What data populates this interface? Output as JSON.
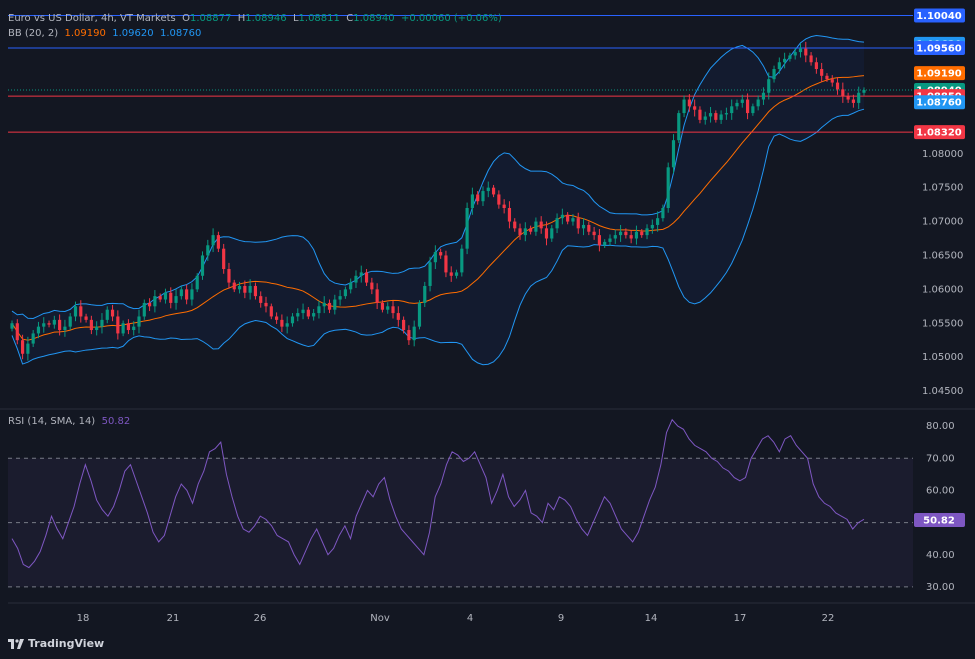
{
  "header": {
    "symbol": "Euro vs US Dollar, 4h, VT Markets",
    "o_label": "O",
    "open": "1.08877",
    "h_label": "H",
    "high": "1.08946",
    "l_label": "L",
    "low": "1.08811",
    "c_label": "C",
    "close": "1.08940",
    "change": "+0.00060 (+0.06%)",
    "bb_label": "BB (20, 2)",
    "bb_basis": "1.09190",
    "bb_upper": "1.09620",
    "bb_lower": "1.08760"
  },
  "rsi_header": {
    "label": "RSI (14, SMA, 14)",
    "value": "50.82"
  },
  "logo": "TradingView",
  "colors": {
    "background": "#131722",
    "up": "#089981",
    "down": "#f23645",
    "bb_band": "#2962ff",
    "bb_basis": "#ff6d00",
    "rsi": "#7e57c2",
    "hline_blue": "#2962ff",
    "hline_red": "#f23645"
  },
  "chart_data": [
    {
      "type": "candlestick",
      "title": "Euro vs US Dollar, 4h, VT Markets",
      "ylim": [
        1.0425,
        1.1015
      ],
      "y_ticks": [
        "1.04500",
        "1.05000",
        "1.05500",
        "1.06000",
        "1.06500",
        "1.07000",
        "1.07500",
        "1.08000"
      ],
      "x_ticks": [
        "18",
        "21",
        "26",
        "Nov",
        "4",
        "9",
        "14",
        "17",
        "22"
      ],
      "horizontal_lines": [
        {
          "value": 1.1004,
          "color": "#2962ff",
          "label": "1.10040"
        },
        {
          "value": 1.0956,
          "color": "#2962ff",
          "label": "1.09560"
        },
        {
          "value": 1.0885,
          "color": "#f23645",
          "label": "1.08850"
        },
        {
          "value": 1.0832,
          "color": "#f23645",
          "label": "1.08320"
        }
      ],
      "price_tags": [
        {
          "label": "1.10040",
          "value": 1.1004,
          "bg": "#2962ff",
          "fg": "#ffffff"
        },
        {
          "label": "1.09620",
          "value": 1.0962,
          "bg": "#2196f3",
          "fg": "#ffffff"
        },
        {
          "label": "1.09560",
          "value": 1.0956,
          "bg": "#2962ff",
          "fg": "#ffffff"
        },
        {
          "label": "1.09190",
          "value": 1.0919,
          "bg": "#ff6d00",
          "fg": "#ffffff"
        },
        {
          "label": "1.08940",
          "value": 1.0894,
          "bg": "#089981",
          "fg": "#ffffff"
        },
        {
          "label": "1.08850",
          "value": 1.0885,
          "bg": "#f23645",
          "fg": "#ffffff"
        },
        {
          "label": "1.08760",
          "value": 1.0876,
          "bg": "#2196f3",
          "fg": "#ffffff"
        },
        {
          "label": "1.08320",
          "value": 1.0832,
          "bg": "#f23645",
          "fg": "#ffffff"
        }
      ],
      "close_series": [
        1.055,
        1.0525,
        1.0505,
        1.052,
        1.0535,
        1.0545,
        1.055,
        1.0548,
        1.0555,
        1.054,
        1.0545,
        1.056,
        1.0575,
        1.056,
        1.0555,
        1.054,
        1.0545,
        1.0555,
        1.057,
        1.056,
        1.0535,
        1.055,
        1.054,
        1.0545,
        1.056,
        1.058,
        1.0575,
        1.059,
        1.0585,
        1.0595,
        1.058,
        1.059,
        1.06,
        1.0585,
        1.06,
        1.062,
        1.065,
        1.0665,
        1.068,
        1.066,
        1.063,
        1.061,
        1.06,
        1.0605,
        1.0595,
        1.0605,
        1.059,
        1.058,
        1.0575,
        1.056,
        1.0555,
        1.0545,
        1.055,
        1.056,
        1.0565,
        1.057,
        1.056,
        1.0565,
        1.0575,
        1.058,
        1.057,
        1.0585,
        1.059,
        1.06,
        1.061,
        1.062,
        1.0625,
        1.061,
        1.06,
        1.058,
        1.057,
        1.0575,
        1.0565,
        1.0555,
        1.054,
        1.0525,
        1.0545,
        1.058,
        1.0605,
        1.064,
        1.0655,
        1.065,
        1.0625,
        1.062,
        1.0625,
        1.066,
        1.072,
        1.074,
        1.073,
        1.0745,
        1.075,
        1.074,
        1.0725,
        1.072,
        1.07,
        1.069,
        1.068,
        1.069,
        1.0685,
        1.07,
        1.069,
        1.0675,
        1.069,
        1.0705,
        1.071,
        1.07,
        1.0705,
        1.069,
        1.0695,
        1.0685,
        1.068,
        1.0665,
        1.067,
        1.0675,
        1.068,
        1.0685,
        1.068,
        1.0675,
        1.0685,
        1.068,
        1.069,
        1.0695,
        1.0705,
        1.072,
        1.078,
        1.082,
        1.086,
        1.088,
        1.087,
        1.0865,
        1.085,
        1.0855,
        1.086,
        1.085,
        1.0858,
        1.086,
        1.087,
        1.0875,
        1.088,
        1.086,
        1.087,
        1.088,
        1.089,
        1.091,
        1.0925,
        1.0935,
        1.094,
        1.0945,
        1.095,
        1.0955,
        1.0945,
        1.0935,
        1.0925,
        1.0915,
        1.091,
        1.0905,
        1.0895,
        1.0885,
        1.088,
        1.0875,
        1.089,
        1.0894
      ]
    },
    {
      "type": "line",
      "title": "RSI (14, SMA, 14)",
      "ylim": [
        25,
        85
      ],
      "y_ticks": [
        "30.00",
        "40.00",
        "50.00",
        "60.00",
        "70.00",
        "80.00"
      ],
      "bands": [
        30,
        50,
        70
      ],
      "last_value": 50.82,
      "series": [
        {
          "values": [
            45,
            42,
            37,
            36,
            38,
            41,
            46,
            52,
            48,
            45,
            50,
            55,
            62,
            68,
            63,
            57,
            54,
            52,
            55,
            60,
            66,
            68,
            63,
            58,
            53,
            47,
            44,
            46,
            52,
            58,
            62,
            60,
            56,
            62,
            66,
            72,
            73,
            75,
            65,
            58,
            52,
            48,
            47,
            49,
            52,
            51,
            49,
            46,
            45,
            44,
            40,
            37,
            41,
            45,
            48,
            44,
            40,
            42,
            46,
            49,
            45,
            52,
            56,
            60,
            58,
            62,
            64,
            57,
            52,
            48,
            46,
            44,
            42,
            40,
            47,
            58,
            62,
            68,
            72,
            71,
            69,
            70,
            72,
            68,
            64,
            56,
            60,
            65,
            58,
            55,
            57,
            60,
            53,
            52,
            50,
            56,
            54,
            58,
            57,
            55,
            51,
            48,
            46,
            50,
            54,
            58,
            56,
            52,
            48,
            46,
            44,
            47,
            52,
            57,
            61,
            68,
            78,
            82,
            80,
            79,
            76,
            74,
            73,
            72,
            70,
            69,
            67,
            66,
            64,
            63,
            64,
            70,
            73,
            76,
            77,
            75,
            72,
            76,
            77,
            74,
            72,
            70,
            62,
            58,
            56,
            55,
            53,
            52,
            51,
            48,
            50,
            51
          ]
        }
      ]
    }
  ]
}
